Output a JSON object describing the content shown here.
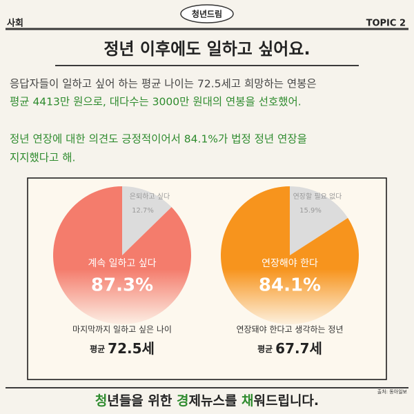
{
  "header": {
    "badge": "청년드림",
    "section": "사회",
    "topic": "TOPIC 2"
  },
  "headline": "정년 이후에도 일하고 싶어요.",
  "body": {
    "paragraph1": [
      "응답자들이 일하고 싶어 하는 평균 나이는 72.5세고 희망하는 연봉은",
      "평균 4413만 원으로, 대다수는 3000만 원대의 연봉을 선호했어."
    ],
    "paragraph2": [
      "정년 연장에 대한 의견도 긍정적이어서 84.1%가 법정 정년 연장을",
      "지지했다고 해."
    ]
  },
  "chart_data": [
    {
      "type": "pie",
      "categories": [
        "은퇴하고 싶다",
        "계속 일하고 싶다"
      ],
      "values": [
        12.7,
        87.3
      ],
      "value_labels": [
        "12.7%",
        "87.3%"
      ],
      "colors": [
        "#dcdcdc",
        "#f47c6c"
      ],
      "caption": "마지막까지 일하고 싶은 나이",
      "note": {
        "label": "평균",
        "value": "72.5세"
      }
    },
    {
      "type": "pie",
      "categories": [
        "연장할 필요 없다",
        "연장해야 한다"
      ],
      "values": [
        15.9,
        84.1
      ],
      "value_labels": [
        "15.9%",
        "84.1%"
      ],
      "colors": [
        "#dcdcdc",
        "#f7941d"
      ],
      "caption": "연장돼야 한다고 생각하는 정년",
      "note": {
        "label": "평균",
        "value": "67.7세"
      }
    }
  ],
  "footer": {
    "slogan": [
      "청",
      "년들을 위한 ",
      "경",
      "제뉴스를 ",
      "채",
      "워드립니다."
    ],
    "source": "출처: 동아일보"
  }
}
